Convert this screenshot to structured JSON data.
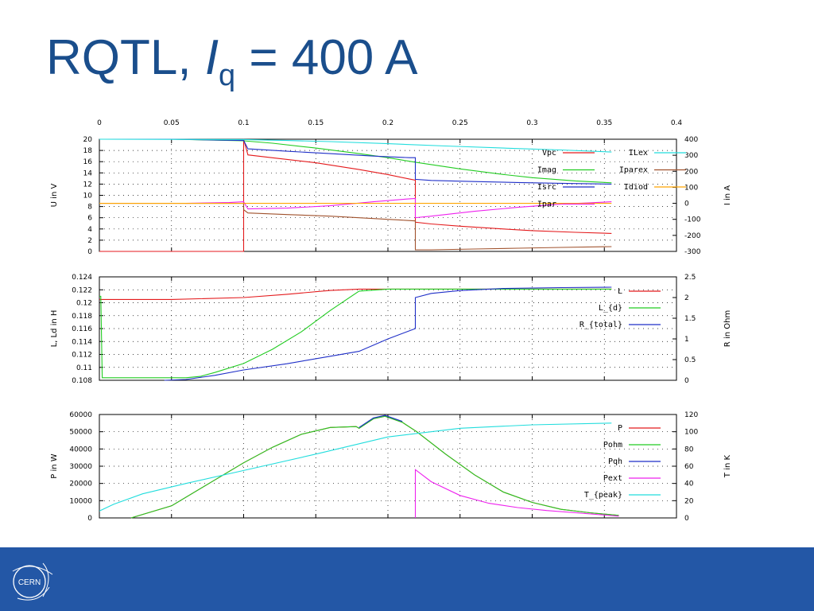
{
  "title": {
    "prefix": "RQTL, ",
    "var": "I",
    "sub": "q",
    "suffix": " = 400 A"
  },
  "footer": {
    "logo_text": "CERN",
    "logo_icon": "cern-logo-icon",
    "band_color": "#2357a6"
  },
  "chart_data": [
    {
      "type": "line",
      "top_axis": {
        "ticks": [
          "0",
          "0.05",
          "0.1",
          "0.15",
          "0.2",
          "0.25",
          "0.3",
          "0.35",
          "0.4"
        ],
        "xlim": [
          0,
          0.4
        ]
      },
      "xlim": [
        0,
        0.4
      ],
      "ylabel": "U in V",
      "ylim": [
        0,
        20
      ],
      "yticks": [
        "0",
        "2",
        "4",
        "6",
        "8",
        "10",
        "12",
        "14",
        "16",
        "18",
        "20"
      ],
      "y2label": "I in A",
      "y2lim": [
        -300,
        400
      ],
      "y2ticks": [
        "-300",
        "-200",
        "-100",
        "0",
        "100",
        "200",
        "300",
        "400"
      ],
      "grid": true,
      "legend_position": "top-right",
      "legend_layout": "two-columns",
      "series": [
        {
          "name": "Vpc",
          "axis": "y",
          "color": "#e41a1c",
          "x": [
            0,
            0.1,
            0.1,
            0.103,
            0.12,
            0.15,
            0.18,
            0.2,
            0.215,
            0.219,
            0.219,
            0.23,
            0.25,
            0.28,
            0.3,
            0.33,
            0.355
          ],
          "y": [
            0,
            0,
            20,
            17.2,
            16.7,
            15.8,
            14.6,
            13.7,
            12.9,
            12.7,
            5.2,
            4.9,
            4.5,
            4.0,
            3.7,
            3.4,
            3.2
          ]
        },
        {
          "name": "Imag",
          "axis": "y2",
          "color": "#22cc22",
          "x": [
            0,
            0.05,
            0.1,
            0.12,
            0.15,
            0.18,
            0.2,
            0.22,
            0.25,
            0.28,
            0.3,
            0.33,
            0.355
          ],
          "y": [
            400,
            400,
            390,
            375,
            345,
            310,
            285,
            255,
            215,
            180,
            160,
            140,
            128
          ]
        },
        {
          "name": "Isrc",
          "axis": "y2",
          "color": "#1f2fc8",
          "x": [
            0,
            0.05,
            0.1,
            0.103,
            0.13,
            0.16,
            0.19,
            0.215,
            0.219,
            0.219,
            0.23,
            0.26,
            0.29,
            0.32,
            0.355
          ],
          "y": [
            400,
            400,
            392,
            340,
            325,
            310,
            295,
            285,
            285,
            150,
            143,
            136,
            130,
            125,
            120
          ]
        },
        {
          "name": "Ipar",
          "axis": "y2",
          "color": "#ee22ee",
          "x": [
            0.06,
            0.09,
            0.1,
            0.103,
            0.13,
            0.16,
            0.19,
            0.215,
            0.219,
            0.219,
            0.23,
            0.26,
            0.29,
            0.32,
            0.355
          ],
          "y": [
            0,
            5,
            10,
            -35,
            -30,
            -15,
            10,
            28,
            30,
            -90,
            -80,
            -50,
            -25,
            -5,
            10
          ]
        },
        {
          "name": "ILex",
          "axis": "y2",
          "color": "#22dddd",
          "x": [
            0,
            0.1,
            0.13,
            0.16,
            0.2,
            0.24,
            0.28,
            0.32,
            0.355
          ],
          "y": [
            400,
            398,
            392,
            385,
            372,
            358,
            345,
            333,
            320
          ]
        },
        {
          "name": "Iparex",
          "axis": "y2",
          "color": "#a0522d",
          "x": [
            0,
            0.1,
            0.1,
            0.103,
            0.13,
            0.16,
            0.19,
            0.21,
            0.219,
            0.219,
            0.23,
            0.26,
            0.29,
            0.32,
            0.355
          ],
          "y": [
            0,
            0,
            -40,
            -60,
            -70,
            -80,
            -95,
            -105,
            -110,
            -290,
            -290,
            -285,
            -280,
            -275,
            -270
          ]
        },
        {
          "name": "Idiod",
          "axis": "y2",
          "color": "#ffa500",
          "x": [
            0,
            0.05,
            0.1,
            0.15,
            0.2,
            0.25,
            0.3,
            0.355
          ],
          "y": [
            0,
            0,
            0,
            0,
            0,
            0,
            0,
            0
          ]
        }
      ]
    },
    {
      "type": "line",
      "xlim": [
        0,
        0.4
      ],
      "ylabel": "L, Ld in H",
      "ylim": [
        0.108,
        0.124
      ],
      "yticks": [
        "0.108",
        "0.11",
        "0.112",
        "0.114",
        "0.116",
        "0.118",
        "0.12",
        "0.122",
        "0.124"
      ],
      "y2label": "R in Ohm",
      "y2lim": [
        0,
        2.5
      ],
      "y2ticks": [
        "0",
        "0.5",
        "1",
        "1.5",
        "2",
        "2.5"
      ],
      "grid": true,
      "legend_position": "top-right",
      "series": [
        {
          "name": "L",
          "axis": "y",
          "color": "#e41a1c",
          "x": [
            0,
            0.05,
            0.1,
            0.13,
            0.16,
            0.18,
            0.2,
            0.25,
            0.3,
            0.355
          ],
          "y": [
            0.1205,
            0.1205,
            0.1208,
            0.1213,
            0.1219,
            0.1221,
            0.1221,
            0.1221,
            0.1221,
            0.1221
          ]
        },
        {
          "name": "L_{d}",
          "axis": "y",
          "color": "#22cc22",
          "x": [
            0,
            0.001,
            0.002,
            0.06,
            0.07,
            0.08,
            0.1,
            0.12,
            0.14,
            0.16,
            0.18,
            0.2,
            0.25,
            0.3,
            0.355
          ],
          "y": [
            0.121,
            0.121,
            0.1084,
            0.1084,
            0.1086,
            0.1092,
            0.1106,
            0.1128,
            0.1155,
            0.1188,
            0.1218,
            0.1221,
            0.1221,
            0.1221,
            0.1221
          ]
        },
        {
          "name": "R_{total}",
          "axis": "y2",
          "color": "#1f2fc8",
          "x": [
            0.045,
            0.06,
            0.08,
            0.1,
            0.13,
            0.16,
            0.18,
            0.2,
            0.219,
            0.219,
            0.23,
            0.25,
            0.28,
            0.32,
            0.355
          ],
          "y": [
            0,
            0.02,
            0.12,
            0.25,
            0.4,
            0.58,
            0.7,
            1.0,
            1.25,
            2.0,
            2.1,
            2.17,
            2.22,
            2.24,
            2.25
          ]
        }
      ]
    },
    {
      "type": "line",
      "xlim": [
        0,
        0.4
      ],
      "ylabel": "P in W",
      "ylim": [
        0,
        60000
      ],
      "yticks": [
        "0",
        "10000",
        "20000",
        "30000",
        "40000",
        "50000",
        "60000"
      ],
      "y2label": "T in K",
      "y2lim": [
        0,
        120
      ],
      "y2ticks": [
        "0",
        "20",
        "40",
        "60",
        "80",
        "100",
        "120"
      ],
      "grid": true,
      "legend_position": "top-right",
      "series": [
        {
          "name": "P",
          "axis": "y",
          "color": "#e41a1c",
          "x": [
            0.022,
            0.05,
            0.08,
            0.1,
            0.12,
            0.14,
            0.16,
            0.178,
            0.18,
            0.19,
            0.198,
            0.21,
            0.22,
            0.24,
            0.26,
            0.28,
            0.3,
            0.32,
            0.34,
            0.36
          ],
          "y": [
            0,
            7000,
            22000,
            32000,
            41000,
            48500,
            52500,
            53000,
            52000,
            57500,
            59000,
            55500,
            50000,
            37000,
            25000,
            15000,
            9000,
            5000,
            3000,
            1500
          ]
        },
        {
          "name": "Pohm",
          "axis": "y",
          "color": "#22cc22",
          "x": [
            0.022,
            0.05,
            0.08,
            0.1,
            0.12,
            0.14,
            0.16,
            0.178,
            0.18,
            0.19,
            0.198,
            0.21,
            0.22,
            0.24,
            0.26,
            0.28,
            0.3,
            0.32,
            0.34,
            0.36
          ],
          "y": [
            0,
            7000,
            22000,
            32000,
            41000,
            48500,
            52500,
            53000,
            52000,
            57500,
            59000,
            55500,
            50000,
            37000,
            25000,
            15000,
            9000,
            5000,
            3000,
            1500
          ]
        },
        {
          "name": "Pqh",
          "axis": "y",
          "color": "#1f2fc8",
          "x": [
            0.18,
            0.19,
            0.198,
            0.21
          ],
          "y": [
            52500,
            58000,
            59500,
            56000
          ]
        },
        {
          "name": "Pext",
          "axis": "y",
          "color": "#ee22ee",
          "x": [
            0.219,
            0.219,
            0.23,
            0.25,
            0.27,
            0.29,
            0.31,
            0.33,
            0.36
          ],
          "y": [
            0,
            28000,
            21000,
            13000,
            8500,
            6000,
            4300,
            3000,
            1000
          ]
        },
        {
          "name": "T_{peak}",
          "axis": "y2",
          "color": "#22dddd",
          "x": [
            0,
            0.01,
            0.03,
            0.06,
            0.1,
            0.15,
            0.2,
            0.25,
            0.3,
            0.355
          ],
          "y": [
            8,
            16,
            28,
            40,
            55,
            74,
            94,
            104,
            108,
            110
          ]
        }
      ]
    }
  ]
}
